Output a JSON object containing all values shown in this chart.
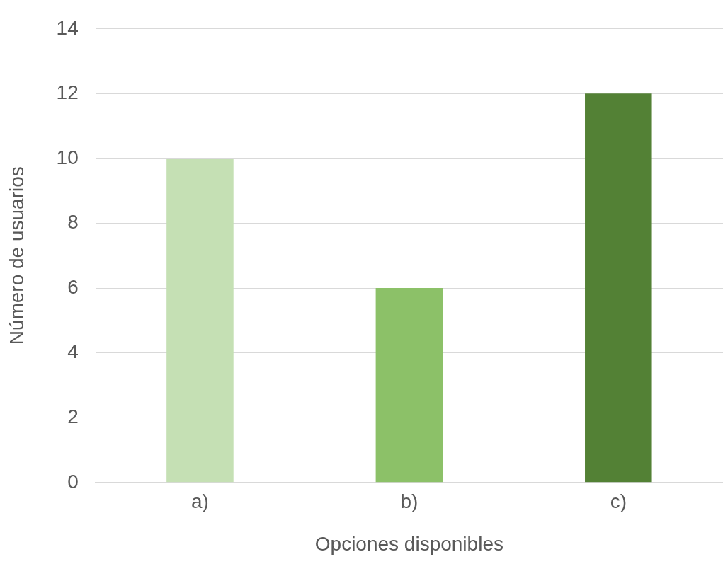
{
  "chart_data": {
    "type": "bar",
    "xlabel": "Opciones disponibles",
    "ylabel": "Número de usuarios",
    "categories": [
      "a)",
      "b)",
      "c)"
    ],
    "values": [
      10,
      6,
      12
    ],
    "colors": [
      "#c5e0b4",
      "#8cc168",
      "#538135"
    ],
    "ylim": [
      0,
      14
    ],
    "yticks": [
      0,
      2,
      4,
      6,
      8,
      10,
      12,
      14
    ],
    "grid": "y",
    "legend": false
  }
}
